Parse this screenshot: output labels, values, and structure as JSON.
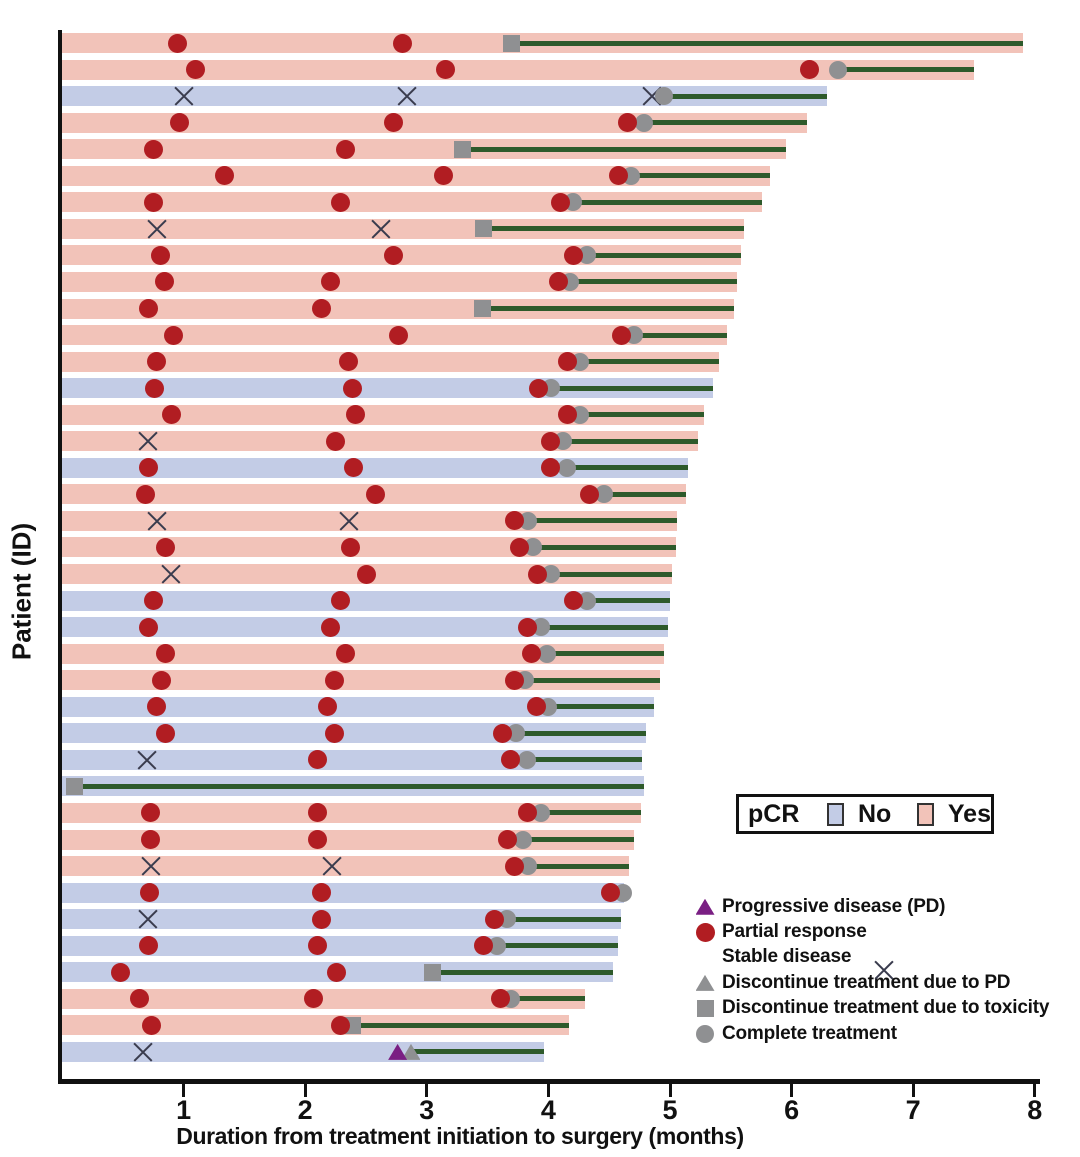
{
  "chart_data": {
    "type": "swimmer-bar",
    "title": "",
    "xlabel": "Duration from treatment initiation to surgery (months)",
    "ylabel": "Patient (ID)",
    "xlim": [
      0,
      8
    ],
    "xticks": [
      1,
      2,
      3,
      4,
      5,
      6,
      7,
      8
    ],
    "grid": false,
    "colors": {
      "pcr_yes_bar": "#f2c3b9",
      "pcr_no_bar": "#c3cce6",
      "partial_response": "#b11d22",
      "progressive_disease": "#7a1f83",
      "gray_marker": "#8f9092",
      "post_treatment_line": "#2e5a2b",
      "axis": "#111111"
    },
    "pcr_legend": {
      "title": "pCR",
      "no_label": "No",
      "yes_label": "Yes"
    },
    "marker_legend": [
      {
        "type": "pd",
        "label": "Progressive disease (PD)"
      },
      {
        "type": "pr",
        "label": "Partial response"
      },
      {
        "type": "sd",
        "label": "Stable disease"
      },
      {
        "type": "disc_pd",
        "label": "Discontinue treatment due to PD"
      },
      {
        "type": "disc_tox",
        "label": "Discontinue treatment due to toxicity"
      },
      {
        "type": "complete",
        "label": "Complete treatment"
      }
    ],
    "patients": [
      {
        "pcr": "Yes",
        "surgery": 7.9,
        "treatment_end": 3.7,
        "events": [
          {
            "t": 0.95,
            "type": "pr"
          },
          {
            "t": 2.8,
            "type": "pr"
          },
          {
            "t": 3.7,
            "type": "disc_tox"
          }
        ]
      },
      {
        "pcr": "Yes",
        "surgery": 7.5,
        "treatment_end": 6.38,
        "events": [
          {
            "t": 1.1,
            "type": "pr"
          },
          {
            "t": 3.15,
            "type": "pr"
          },
          {
            "t": 6.15,
            "type": "pr"
          },
          {
            "t": 6.38,
            "type": "complete"
          }
        ]
      },
      {
        "pcr": "No",
        "surgery": 6.29,
        "treatment_end": 4.95,
        "events": [
          {
            "t": 1.0,
            "type": "sd"
          },
          {
            "t": 2.84,
            "type": "sd"
          },
          {
            "t": 4.85,
            "type": "sd"
          },
          {
            "t": 4.95,
            "type": "complete"
          }
        ]
      },
      {
        "pcr": "Yes",
        "surgery": 6.13,
        "treatment_end": 4.79,
        "events": [
          {
            "t": 0.97,
            "type": "pr"
          },
          {
            "t": 2.73,
            "type": "pr"
          },
          {
            "t": 4.65,
            "type": "pr"
          },
          {
            "t": 4.79,
            "type": "complete"
          }
        ]
      },
      {
        "pcr": "Yes",
        "surgery": 5.95,
        "treatment_end": 3.29,
        "events": [
          {
            "t": 0.75,
            "type": "pr"
          },
          {
            "t": 2.33,
            "type": "pr"
          },
          {
            "t": 3.29,
            "type": "disc_tox"
          }
        ]
      },
      {
        "pcr": "Yes",
        "surgery": 5.82,
        "treatment_end": 4.68,
        "events": [
          {
            "t": 1.34,
            "type": "pr"
          },
          {
            "t": 3.14,
            "type": "pr"
          },
          {
            "t": 4.58,
            "type": "pr"
          },
          {
            "t": 4.68,
            "type": "complete"
          }
        ]
      },
      {
        "pcr": "Yes",
        "surgery": 5.76,
        "treatment_end": 4.2,
        "events": [
          {
            "t": 0.75,
            "type": "pr"
          },
          {
            "t": 2.29,
            "type": "pr"
          },
          {
            "t": 4.1,
            "type": "pr"
          },
          {
            "t": 4.2,
            "type": "complete"
          }
        ]
      },
      {
        "pcr": "Yes",
        "surgery": 5.61,
        "treatment_end": 3.47,
        "events": [
          {
            "t": 0.78,
            "type": "sd"
          },
          {
            "t": 2.62,
            "type": "sd"
          },
          {
            "t": 3.47,
            "type": "disc_tox"
          }
        ]
      },
      {
        "pcr": "Yes",
        "surgery": 5.58,
        "treatment_end": 4.32,
        "events": [
          {
            "t": 0.81,
            "type": "pr"
          },
          {
            "t": 2.73,
            "type": "pr"
          },
          {
            "t": 4.21,
            "type": "pr"
          },
          {
            "t": 4.32,
            "type": "complete"
          }
        ]
      },
      {
        "pcr": "Yes",
        "surgery": 5.55,
        "treatment_end": 4.18,
        "events": [
          {
            "t": 0.84,
            "type": "pr"
          },
          {
            "t": 2.21,
            "type": "pr"
          },
          {
            "t": 4.08,
            "type": "pr"
          },
          {
            "t": 4.18,
            "type": "complete"
          }
        ]
      },
      {
        "pcr": "Yes",
        "surgery": 5.53,
        "treatment_end": 3.46,
        "events": [
          {
            "t": 0.71,
            "type": "pr"
          },
          {
            "t": 2.13,
            "type": "pr"
          },
          {
            "t": 3.46,
            "type": "disc_tox"
          }
        ]
      },
      {
        "pcr": "Yes",
        "surgery": 5.47,
        "treatment_end": 4.7,
        "events": [
          {
            "t": 0.92,
            "type": "pr"
          },
          {
            "t": 2.77,
            "type": "pr"
          },
          {
            "t": 4.6,
            "type": "pr"
          },
          {
            "t": 4.7,
            "type": "complete"
          }
        ]
      },
      {
        "pcr": "Yes",
        "surgery": 5.4,
        "treatment_end": 4.26,
        "events": [
          {
            "t": 0.78,
            "type": "pr"
          },
          {
            "t": 2.36,
            "type": "pr"
          },
          {
            "t": 4.16,
            "type": "pr"
          },
          {
            "t": 4.26,
            "type": "complete"
          }
        ]
      },
      {
        "pcr": "No",
        "surgery": 5.35,
        "treatment_end": 4.02,
        "events": [
          {
            "t": 0.76,
            "type": "pr"
          },
          {
            "t": 2.39,
            "type": "pr"
          },
          {
            "t": 3.92,
            "type": "pr"
          },
          {
            "t": 4.02,
            "type": "complete"
          }
        ]
      },
      {
        "pcr": "Yes",
        "surgery": 5.28,
        "treatment_end": 4.26,
        "events": [
          {
            "t": 0.9,
            "type": "pr"
          },
          {
            "t": 2.41,
            "type": "pr"
          },
          {
            "t": 4.16,
            "type": "pr"
          },
          {
            "t": 4.26,
            "type": "complete"
          }
        ]
      },
      {
        "pcr": "Yes",
        "surgery": 5.23,
        "treatment_end": 4.12,
        "events": [
          {
            "t": 0.71,
            "type": "sd"
          },
          {
            "t": 2.25,
            "type": "pr"
          },
          {
            "t": 4.02,
            "type": "pr"
          },
          {
            "t": 4.12,
            "type": "complete"
          }
        ]
      },
      {
        "pcr": "No",
        "surgery": 5.15,
        "treatment_end": 4.15,
        "events": [
          {
            "t": 0.71,
            "type": "pr"
          },
          {
            "t": 2.4,
            "type": "pr"
          },
          {
            "t": 4.02,
            "type": "pr"
          },
          {
            "t": 4.15,
            "type": "complete"
          }
        ]
      },
      {
        "pcr": "Yes",
        "surgery": 5.13,
        "treatment_end": 4.46,
        "events": [
          {
            "t": 0.69,
            "type": "pr"
          },
          {
            "t": 2.58,
            "type": "pr"
          },
          {
            "t": 4.34,
            "type": "pr"
          },
          {
            "t": 4.46,
            "type": "complete"
          }
        ]
      },
      {
        "pcr": "Yes",
        "surgery": 5.06,
        "treatment_end": 3.83,
        "events": [
          {
            "t": 0.78,
            "type": "sd"
          },
          {
            "t": 2.36,
            "type": "sd"
          },
          {
            "t": 3.72,
            "type": "pr"
          },
          {
            "t": 3.83,
            "type": "complete"
          }
        ]
      },
      {
        "pcr": "Yes",
        "surgery": 5.05,
        "treatment_end": 3.87,
        "events": [
          {
            "t": 0.85,
            "type": "pr"
          },
          {
            "t": 2.37,
            "type": "pr"
          },
          {
            "t": 3.76,
            "type": "pr"
          },
          {
            "t": 3.87,
            "type": "complete"
          }
        ]
      },
      {
        "pcr": "Yes",
        "surgery": 5.02,
        "treatment_end": 4.02,
        "events": [
          {
            "t": 0.9,
            "type": "sd"
          },
          {
            "t": 2.5,
            "type": "pr"
          },
          {
            "t": 3.91,
            "type": "pr"
          },
          {
            "t": 4.02,
            "type": "complete"
          }
        ]
      },
      {
        "pcr": "No",
        "surgery": 5.0,
        "treatment_end": 4.32,
        "events": [
          {
            "t": 0.75,
            "type": "pr"
          },
          {
            "t": 2.29,
            "type": "pr"
          },
          {
            "t": 4.21,
            "type": "pr"
          },
          {
            "t": 4.32,
            "type": "complete"
          }
        ]
      },
      {
        "pcr": "No",
        "surgery": 4.98,
        "treatment_end": 3.94,
        "events": [
          {
            "t": 0.71,
            "type": "pr"
          },
          {
            "t": 2.21,
            "type": "pr"
          },
          {
            "t": 3.83,
            "type": "pr"
          },
          {
            "t": 3.94,
            "type": "complete"
          }
        ]
      },
      {
        "pcr": "Yes",
        "surgery": 4.95,
        "treatment_end": 3.99,
        "events": [
          {
            "t": 0.85,
            "type": "pr"
          },
          {
            "t": 2.33,
            "type": "pr"
          },
          {
            "t": 3.86,
            "type": "pr"
          },
          {
            "t": 3.99,
            "type": "complete"
          }
        ]
      },
      {
        "pcr": "Yes",
        "surgery": 4.92,
        "treatment_end": 3.81,
        "events": [
          {
            "t": 0.82,
            "type": "pr"
          },
          {
            "t": 2.24,
            "type": "pr"
          },
          {
            "t": 3.72,
            "type": "pr"
          },
          {
            "t": 3.81,
            "type": "complete"
          }
        ]
      },
      {
        "pcr": "No",
        "surgery": 4.87,
        "treatment_end": 4.0,
        "events": [
          {
            "t": 0.78,
            "type": "pr"
          },
          {
            "t": 2.18,
            "type": "pr"
          },
          {
            "t": 3.9,
            "type": "pr"
          },
          {
            "t": 4.0,
            "type": "complete"
          }
        ]
      },
      {
        "pcr": "No",
        "surgery": 4.8,
        "treatment_end": 3.73,
        "events": [
          {
            "t": 0.85,
            "type": "pr"
          },
          {
            "t": 2.24,
            "type": "pr"
          },
          {
            "t": 3.62,
            "type": "pr"
          },
          {
            "t": 3.73,
            "type": "complete"
          }
        ]
      },
      {
        "pcr": "No",
        "surgery": 4.77,
        "treatment_end": 3.82,
        "events": [
          {
            "t": 0.7,
            "type": "sd"
          },
          {
            "t": 2.1,
            "type": "pr"
          },
          {
            "t": 3.69,
            "type": "pr"
          },
          {
            "t": 3.82,
            "type": "complete"
          }
        ]
      },
      {
        "pcr": "No",
        "surgery": 4.79,
        "treatment_end": 0.1,
        "events": [
          {
            "t": 0.1,
            "type": "disc_tox"
          }
        ]
      },
      {
        "pcr": "Yes",
        "surgery": 4.76,
        "treatment_end": 3.94,
        "events": [
          {
            "t": 0.73,
            "type": "pr"
          },
          {
            "t": 2.1,
            "type": "pr"
          },
          {
            "t": 3.83,
            "type": "pr"
          },
          {
            "t": 3.94,
            "type": "complete"
          }
        ]
      },
      {
        "pcr": "Yes",
        "surgery": 4.7,
        "treatment_end": 3.79,
        "events": [
          {
            "t": 0.73,
            "type": "pr"
          },
          {
            "t": 2.1,
            "type": "pr"
          },
          {
            "t": 3.66,
            "type": "pr"
          },
          {
            "t": 3.79,
            "type": "complete"
          }
        ]
      },
      {
        "pcr": "Yes",
        "surgery": 4.66,
        "treatment_end": 3.83,
        "events": [
          {
            "t": 0.73,
            "type": "sd"
          },
          {
            "t": 2.22,
            "type": "sd"
          },
          {
            "t": 3.72,
            "type": "pr"
          },
          {
            "t": 3.83,
            "type": "complete"
          }
        ]
      },
      {
        "pcr": "No",
        "surgery": 4.62,
        "treatment_end": 4.61,
        "events": [
          {
            "t": 0.72,
            "type": "pr"
          },
          {
            "t": 2.13,
            "type": "pr"
          },
          {
            "t": 4.51,
            "type": "pr"
          },
          {
            "t": 4.61,
            "type": "complete"
          }
        ]
      },
      {
        "pcr": "No",
        "surgery": 4.6,
        "treatment_end": 3.66,
        "events": [
          {
            "t": 0.71,
            "type": "sd"
          },
          {
            "t": 2.13,
            "type": "pr"
          },
          {
            "t": 3.56,
            "type": "pr"
          },
          {
            "t": 3.66,
            "type": "complete"
          }
        ]
      },
      {
        "pcr": "No",
        "surgery": 4.57,
        "treatment_end": 3.58,
        "events": [
          {
            "t": 0.71,
            "type": "pr"
          },
          {
            "t": 2.1,
            "type": "pr"
          },
          {
            "t": 3.47,
            "type": "pr"
          },
          {
            "t": 3.58,
            "type": "complete"
          }
        ]
      },
      {
        "pcr": "No",
        "surgery": 4.53,
        "treatment_end": 3.05,
        "events": [
          {
            "t": 0.48,
            "type": "pr"
          },
          {
            "t": 2.26,
            "type": "pr"
          },
          {
            "t": 3.05,
            "type": "disc_tox"
          }
        ]
      },
      {
        "pcr": "Yes",
        "surgery": 4.3,
        "treatment_end": 3.69,
        "events": [
          {
            "t": 0.64,
            "type": "pr"
          },
          {
            "t": 2.07,
            "type": "pr"
          },
          {
            "t": 3.61,
            "type": "pr"
          },
          {
            "t": 3.69,
            "type": "complete"
          }
        ]
      },
      {
        "pcr": "Yes",
        "surgery": 4.17,
        "treatment_end": 2.39,
        "events": [
          {
            "t": 0.74,
            "type": "pr"
          },
          {
            "t": 2.29,
            "type": "pr"
          },
          {
            "t": 2.39,
            "type": "disc_tox"
          }
        ]
      },
      {
        "pcr": "No",
        "surgery": 3.96,
        "treatment_end": 2.87,
        "events": [
          {
            "t": 0.67,
            "type": "sd"
          },
          {
            "t": 2.76,
            "type": "pd"
          },
          {
            "t": 2.87,
            "type": "disc_pd"
          }
        ]
      }
    ]
  }
}
